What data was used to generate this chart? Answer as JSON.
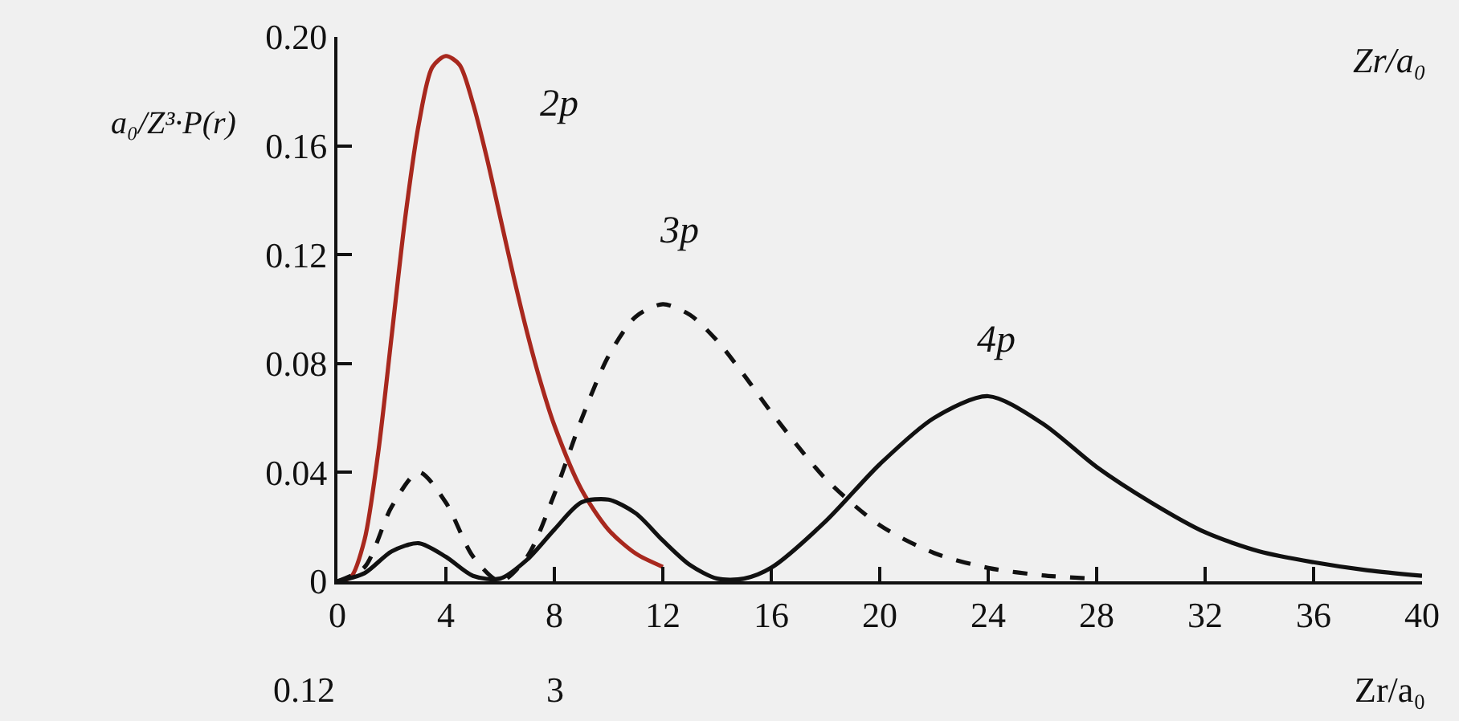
{
  "chart_data": {
    "type": "line",
    "xlabel": "Zr/a₀",
    "ylabel": "a₀/Z³·P(r)",
    "xlim": [
      0,
      40
    ],
    "xticks": [
      0,
      4,
      8,
      12,
      16,
      20,
      24,
      28,
      32,
      36,
      40
    ],
    "ylim": [
      0,
      0.2
    ],
    "yticks": [
      0,
      0.04,
      0.08,
      0.12,
      0.16,
      {
        "value": 0.2,
        "label": "0.20"
      }
    ],
    "grid": false,
    "legend": false,
    "marker": "none",
    "series": [
      {
        "name": "2p",
        "color": "#a8281e",
        "line_style": "solid",
        "x": [
          0,
          0.5,
          1,
          1.5,
          2,
          2.5,
          3,
          3.5,
          4,
          4.5,
          5,
          5.5,
          6,
          6.5,
          7,
          7.5,
          8,
          9,
          10,
          11,
          12
        ],
        "values": [
          0,
          0.0016,
          0.0153,
          0.047,
          0.0902,
          0.1336,
          0.168,
          0.1889,
          0.193,
          0.1898,
          0.1755,
          0.156,
          0.1339,
          0.1118,
          0.0912,
          0.0729,
          0.0573,
          0.0337,
          0.0189,
          0.0102,
          0.0053
        ]
      },
      {
        "name": "3p",
        "color": "#111111",
        "line_style": "dashed",
        "x": [
          0,
          1,
          2,
          3,
          4,
          5,
          6,
          7,
          8,
          9,
          10,
          11,
          12,
          13,
          14,
          15,
          16,
          18,
          20,
          22,
          24,
          26,
          28
        ],
        "values": [
          0,
          0.0052,
          0.0274,
          0.0401,
          0.0289,
          0.0091,
          0,
          0.0091,
          0.032,
          0.0595,
          0.0828,
          0.0972,
          0.1018,
          0.0979,
          0.0884,
          0.0757,
          0.0621,
          0.0377,
          0.0206,
          0.0104,
          0.0049,
          0.0022,
          0.0009
        ]
      },
      {
        "name": "4p",
        "color": "#111111",
        "line_style": "solid",
        "x": [
          0,
          1,
          2,
          3,
          4,
          5,
          6,
          7,
          8,
          9,
          10,
          11,
          12,
          13,
          14,
          15,
          16,
          18,
          20,
          22,
          24,
          26,
          28,
          30,
          32,
          34,
          36,
          38,
          40
        ],
        "values": [
          0,
          0.003,
          0.011,
          0.014,
          0.009,
          0.002,
          0.001,
          0.008,
          0.019,
          0.029,
          0.03,
          0.025,
          0.015,
          0.006,
          0.001,
          0.001,
          0.005,
          0.022,
          0.043,
          0.06,
          0.068,
          0.058,
          0.042,
          0.029,
          0.018,
          0.011,
          0.007,
          0.004,
          0.002
        ]
      }
    ],
    "annotations": [
      "0.12",
      "3",
      "Zr/a₀"
    ]
  }
}
